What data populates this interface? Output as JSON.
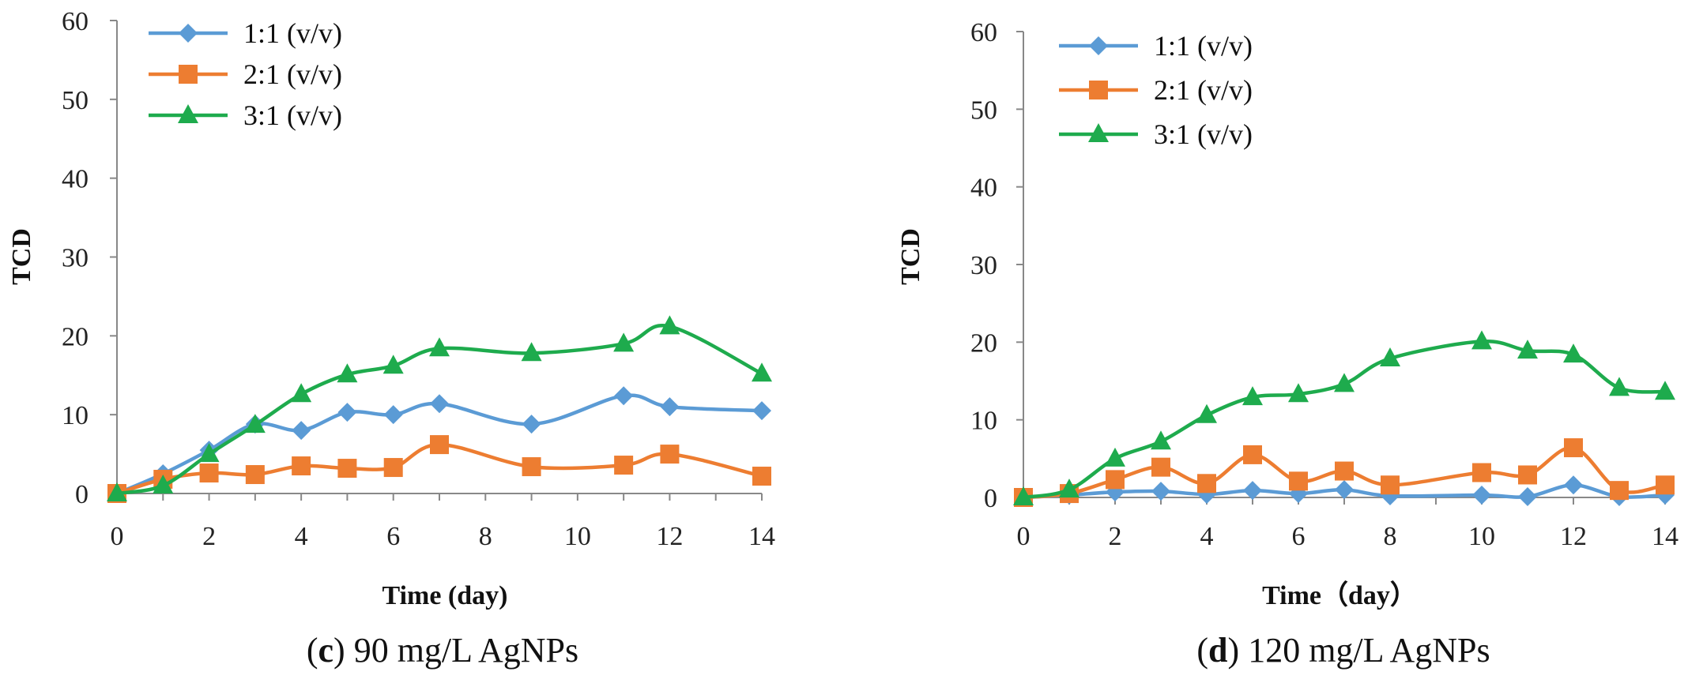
{
  "chart_data": [
    {
      "id": "c",
      "type": "line",
      "title": "",
      "caption_letter": "c",
      "caption_text": " 90 mg/L AgNPs",
      "xlabel": "Time (day)",
      "ylabel": "TCD",
      "xlim": [
        0,
        14
      ],
      "ylim": [
        0,
        60
      ],
      "xticks": [
        0,
        2,
        4,
        6,
        8,
        10,
        12,
        14
      ],
      "yticks": [
        0,
        10,
        20,
        30,
        40,
        50,
        60
      ],
      "series": [
        {
          "name": "1:1 (v/v)",
          "color": "#5b9bd5",
          "marker": "diamond",
          "x": [
            0,
            1,
            2,
            3,
            4,
            5,
            6,
            7,
            9,
            11,
            12,
            14
          ],
          "values": [
            0,
            2.5,
            5.5,
            8.8,
            8.0,
            10.3,
            10.0,
            11.4,
            8.8,
            12.4,
            11.0,
            10.5
          ]
        },
        {
          "name": "2:1 (v/v)",
          "color": "#ed7d31",
          "marker": "square",
          "x": [
            0,
            1,
            2,
            3,
            4,
            5,
            6,
            7,
            9,
            11,
            12,
            14
          ],
          "values": [
            0,
            1.8,
            2.6,
            2.4,
            3.5,
            3.2,
            3.3,
            6.2,
            3.4,
            3.6,
            5.0,
            2.2
          ]
        },
        {
          "name": "3:1 (v/v)",
          "color": "#1eab4d",
          "marker": "triangle",
          "x": [
            0,
            1,
            2,
            3,
            4,
            5,
            6,
            7,
            9,
            11,
            12,
            14
          ],
          "values": [
            0,
            1.0,
            5.0,
            8.7,
            12.6,
            15.1,
            16.2,
            18.4,
            17.8,
            19.0,
            21.2,
            15.2
          ]
        }
      ]
    },
    {
      "id": "d",
      "type": "line",
      "title": "",
      "caption_letter": "d",
      "caption_text": " 120 mg/L AgNPs",
      "xlabel": "Time（day）",
      "ylabel": "TCD",
      "xlim": [
        0,
        14
      ],
      "ylim": [
        0,
        60
      ],
      "xticks": [
        0,
        2,
        4,
        6,
        8,
        10,
        12,
        14
      ],
      "yticks": [
        0,
        10,
        20,
        30,
        40,
        50,
        60
      ],
      "series": [
        {
          "name": "1:1 (v/v)",
          "color": "#5b9bd5",
          "marker": "diamond",
          "x": [
            0,
            1,
            2,
            3,
            4,
            5,
            6,
            7,
            8,
            10,
            11,
            12,
            13,
            14
          ],
          "values": [
            0,
            0.3,
            0.7,
            0.8,
            0.4,
            0.9,
            0.5,
            1.0,
            0.2,
            0.3,
            0.1,
            1.6,
            0.1,
            0.3
          ]
        },
        {
          "name": "2:1 (v/v)",
          "color": "#ed7d31",
          "marker": "square",
          "x": [
            0,
            1,
            2,
            3,
            4,
            5,
            6,
            7,
            8,
            10,
            11,
            12,
            13,
            14
          ],
          "values": [
            0,
            0.5,
            2.3,
            3.9,
            1.8,
            5.5,
            2.1,
            3.4,
            1.6,
            3.2,
            2.9,
            6.4,
            0.9,
            1.6
          ]
        },
        {
          "name": "3:1 (v/v)",
          "color": "#1eab4d",
          "marker": "triangle",
          "x": [
            0,
            1,
            2,
            3,
            4,
            5,
            6,
            7,
            8,
            10,
            11,
            12,
            13,
            14
          ],
          "values": [
            0,
            1.0,
            5.0,
            7.2,
            10.6,
            12.9,
            13.3,
            14.6,
            17.9,
            20.1,
            18.9,
            18.4,
            14.1,
            13.6
          ]
        }
      ]
    }
  ]
}
